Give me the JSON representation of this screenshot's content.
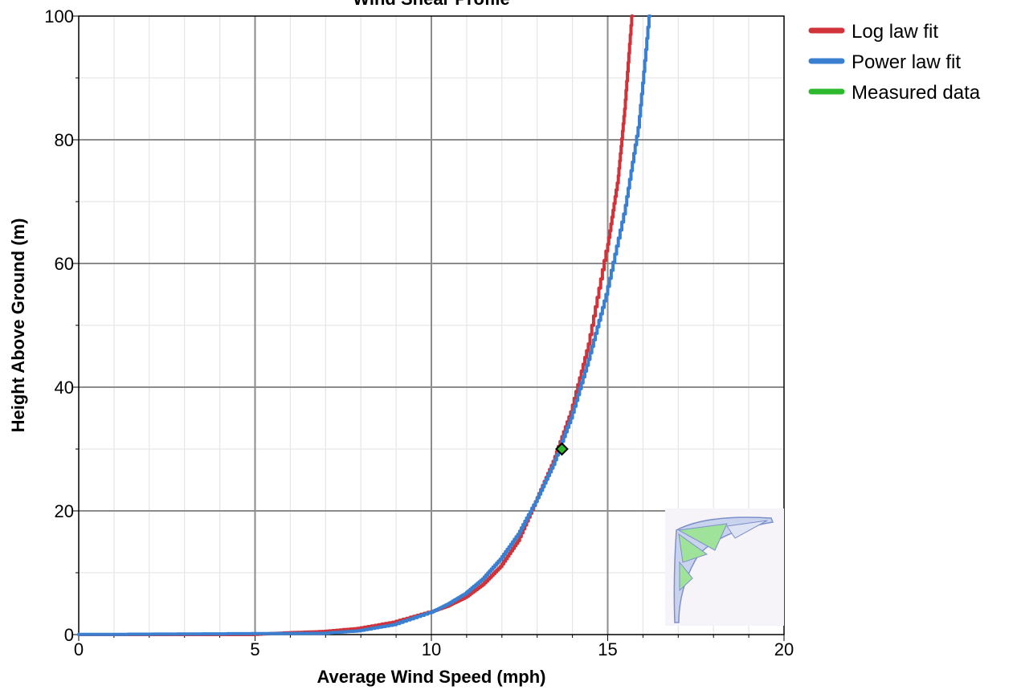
{
  "chart_data": {
    "type": "line",
    "title": "Wind Shear Profile",
    "xlabel": "Average Wind Speed (mph)",
    "ylabel": "Height Above Ground (m)",
    "xlim": [
      0,
      20
    ],
    "ylim": [
      0,
      100
    ],
    "x_ticks": [
      "0",
      "5",
      "10",
      "15",
      "20"
    ],
    "y_ticks": [
      "0",
      "20",
      "40",
      "60",
      "80",
      "100"
    ],
    "grid": true,
    "legend_position": "top-right outside",
    "series": [
      {
        "name": "Log law fit",
        "color": "#d0343a",
        "points": [
          [
            0,
            0
          ],
          [
            5,
            0
          ],
          [
            6,
            0.3
          ],
          [
            7,
            0.5
          ],
          [
            8,
            1.0
          ],
          [
            9,
            2.0
          ],
          [
            10,
            3.6
          ],
          [
            10.5,
            4.6
          ],
          [
            11,
            6.0
          ],
          [
            11.5,
            8.1
          ],
          [
            12,
            11.0
          ],
          [
            12.5,
            15.2
          ],
          [
            13,
            21.5
          ],
          [
            13.5,
            28.0
          ],
          [
            14,
            36.0
          ],
          [
            14.5,
            47.0
          ],
          [
            15,
            62.0
          ],
          [
            15.3,
            73.0
          ],
          [
            15.5,
            85.0
          ],
          [
            15.7,
            100
          ]
        ]
      },
      {
        "name": "Power law fit",
        "color": "#3a7fd0",
        "points": [
          [
            0,
            0
          ],
          [
            7,
            0.2
          ],
          [
            8,
            0.6
          ],
          [
            9,
            1.6
          ],
          [
            10,
            3.5
          ],
          [
            10.5,
            4.9
          ],
          [
            11,
            6.6
          ],
          [
            11.5,
            9.0
          ],
          [
            12,
            12.2
          ],
          [
            12.5,
            16.2
          ],
          [
            13,
            21.5
          ],
          [
            13.5,
            27.5
          ],
          [
            14,
            35.0
          ],
          [
            14.5,
            44.5
          ],
          [
            15,
            55.0
          ],
          [
            15.5,
            68.0
          ],
          [
            15.9,
            82.0
          ],
          [
            16.2,
            100
          ]
        ]
      },
      {
        "name": "Measured data",
        "color": "#2db82d",
        "points": [
          [
            13.7,
            30
          ]
        ]
      }
    ]
  }
}
